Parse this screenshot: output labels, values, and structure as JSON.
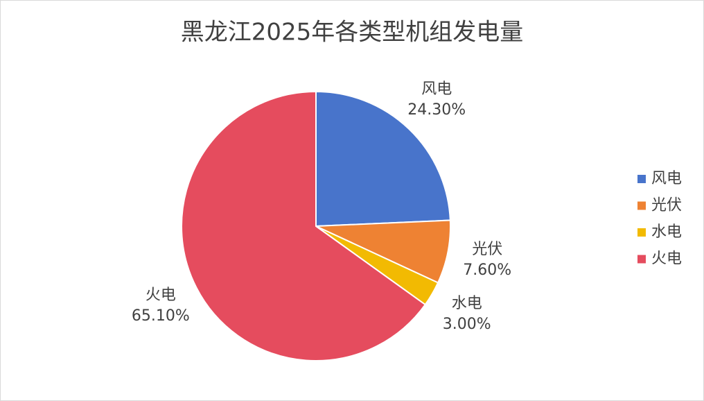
{
  "chart_data": {
    "type": "pie",
    "title": "黑龙江2025年各类型机组发电量",
    "categories": [
      "风电",
      "光伏",
      "水电",
      "火电"
    ],
    "values": [
      24.3,
      7.6,
      3.0,
      65.1
    ],
    "value_labels": [
      "24.30%",
      "7.60%",
      "3.00%",
      "65.10%"
    ],
    "colors": [
      "#4874cb",
      "#ee8233",
      "#f2ba02",
      "#e54c5e"
    ],
    "legend": "right"
  }
}
